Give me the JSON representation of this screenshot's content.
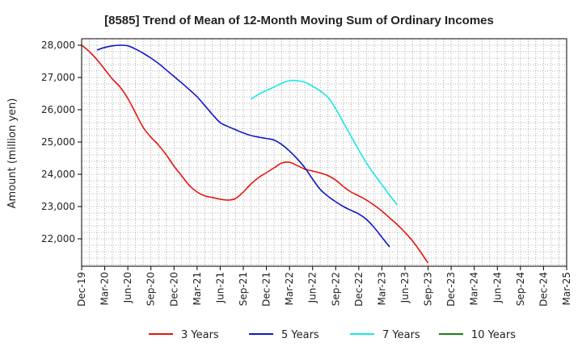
{
  "chart_data": {
    "type": "line",
    "title": "[8585]  Trend of Mean of 12-Month Moving Sum of Ordinary Incomes",
    "xlabel": "",
    "ylabel": "Amount (million yen)",
    "ylim": [
      21150,
      28200
    ],
    "yticks": [
      22000,
      23000,
      24000,
      25000,
      26000,
      27000,
      28000
    ],
    "ytick_labels": [
      "22,000",
      "23,000",
      "24,000",
      "25,000",
      "26,000",
      "27,000",
      "28,000"
    ],
    "xtick_labels": [
      "Dec-19",
      "Mar-20",
      "Jun-20",
      "Sep-20",
      "Dec-20",
      "Mar-21",
      "Jun-21",
      "Sep-21",
      "Dec-21",
      "Mar-22",
      "Jun-22",
      "Sep-22",
      "Dec-22",
      "Mar-23",
      "Jun-23",
      "Sep-23",
      "Dec-23",
      "Mar-24",
      "Jun-24",
      "Sep-24",
      "Dec-24",
      "Mar-25"
    ],
    "grid": true,
    "legend_position": "bottom",
    "series": [
      {
        "name": "3 Years",
        "color": "#e8140f",
        "start_index": 0,
        "values": [
          28000,
          27800,
          27550,
          27250,
          26950,
          26700,
          26350,
          25900,
          25450,
          25150,
          24900,
          24600,
          24250,
          23950,
          23650,
          23450,
          23330,
          23280,
          23230,
          23200,
          23250,
          23450,
          23700,
          23900,
          24050,
          24200,
          24350,
          24370,
          24270,
          24160,
          24100,
          24040,
          23960,
          23820,
          23620,
          23450,
          23330,
          23200,
          23040,
          22860,
          22650,
          22440,
          22200,
          21930,
          21600,
          21250
        ]
      },
      {
        "name": "5 Years",
        "color": "#1016c8",
        "start_index": 2,
        "values": [
          27850,
          27930,
          27980,
          28000,
          27980,
          27880,
          27750,
          27600,
          27430,
          27230,
          27030,
          26830,
          26620,
          26400,
          26130,
          25850,
          25600,
          25480,
          25380,
          25280,
          25200,
          25150,
          25110,
          25060,
          24920,
          24720,
          24480,
          24200,
          23850,
          23530,
          23320,
          23150,
          23000,
          22880,
          22770,
          22600,
          22350,
          22050,
          21750
        ]
      },
      {
        "name": "7 Years",
        "color": "#19e8e6",
        "start_index": 22,
        "values": [
          26330,
          26480,
          26600,
          26700,
          26820,
          26900,
          26900,
          26850,
          26730,
          26580,
          26380,
          26030,
          25600,
          25180,
          24750,
          24350,
          24000,
          23680,
          23350,
          23050
        ]
      },
      {
        "name": "10 Years",
        "color": "#1a7f16",
        "start_index": 0,
        "values": []
      }
    ]
  }
}
